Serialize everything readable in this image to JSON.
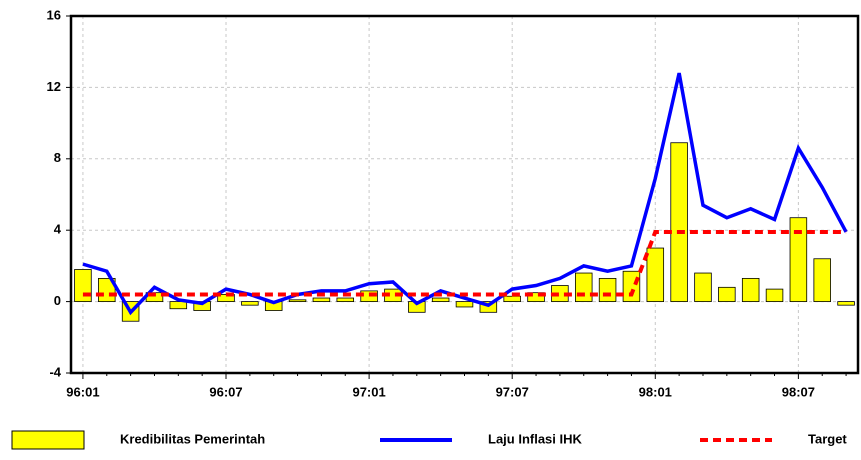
{
  "chart_data": {
    "type": "bar-line",
    "categories": [
      "96:01",
      null,
      null,
      null,
      null,
      null,
      "96:07",
      null,
      null,
      null,
      null,
      null,
      "97:01",
      null,
      null,
      null,
      null,
      null,
      "97:07",
      null,
      null,
      null,
      null,
      null,
      "98:01",
      null,
      null,
      null,
      null,
      null,
      "98:07",
      null,
      null
    ],
    "series": [
      {
        "name": "Kredibilitas Pemerintah",
        "type": "bar",
        "color": "#ffff00",
        "values": [
          1.8,
          1.3,
          -1.1,
          0.5,
          -0.4,
          -0.5,
          0.4,
          -0.2,
          -0.5,
          0.1,
          0.2,
          0.2,
          0.6,
          0.7,
          -0.6,
          0.2,
          -0.3,
          -0.6,
          0.3,
          0.5,
          0.9,
          1.6,
          1.3,
          1.7,
          3.0,
          8.9,
          1.6,
          0.8,
          1.3,
          0.7,
          4.7,
          2.4,
          -0.2
        ]
      },
      {
        "name": "Laju Inflasi IHK",
        "type": "line",
        "color": "#0000ff",
        "values": [
          2.1,
          1.7,
          -0.6,
          0.8,
          0.1,
          -0.1,
          0.7,
          0.4,
          -0.05,
          0.4,
          0.6,
          0.6,
          1.0,
          1.1,
          -0.1,
          0.6,
          0.2,
          -0.2,
          0.7,
          0.9,
          1.3,
          2.0,
          1.7,
          2.0,
          6.9,
          12.8,
          5.4,
          4.7,
          5.2,
          4.6,
          8.6,
          6.4,
          3.9
        ]
      },
      {
        "name": "Target",
        "type": "dashed",
        "color": "#ff0000",
        "values": [
          0.4,
          0.4,
          0.4,
          0.4,
          0.4,
          0.4,
          0.4,
          0.4,
          0.4,
          0.4,
          0.4,
          0.4,
          0.4,
          0.4,
          0.4,
          0.4,
          0.4,
          0.4,
          0.4,
          0.4,
          0.4,
          0.4,
          0.4,
          0.4,
          3.9,
          3.9,
          3.9,
          3.9,
          3.9,
          3.9,
          3.9,
          3.9,
          3.9
        ]
      }
    ],
    "ylim": [
      -4,
      16
    ],
    "yticks": [
      -4,
      0,
      4,
      8,
      12,
      16
    ],
    "grid": true,
    "legend": "bottom"
  }
}
